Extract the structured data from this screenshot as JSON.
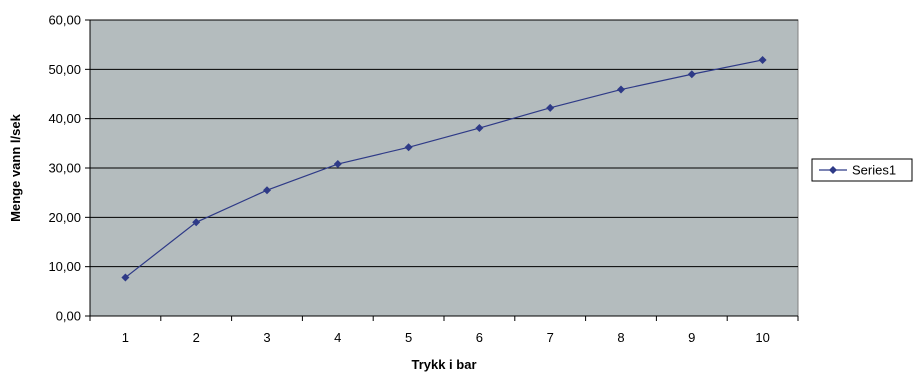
{
  "chart_data": {
    "type": "line",
    "title": "",
    "xlabel": "Trykk i bar",
    "ylabel": "Menge vann l/sek",
    "categories": [
      "1",
      "2",
      "3",
      "4",
      "5",
      "6",
      "7",
      "8",
      "9",
      "10"
    ],
    "series": [
      {
        "name": "Series1",
        "values": [
          7.8,
          19.0,
          25.5,
          30.8,
          34.2,
          38.1,
          42.2,
          45.9,
          49.0,
          51.9
        ]
      }
    ],
    "ylim": [
      0,
      60
    ],
    "ytick_labels": [
      "0,00",
      "10,00",
      "20,00",
      "30,00",
      "40,00",
      "50,00",
      "60,00"
    ],
    "grid": true,
    "legend_position": "right",
    "colors": {
      "plot_background": "#b4bcbe",
      "series": "#2e3a87",
      "grid": "#000000"
    }
  }
}
